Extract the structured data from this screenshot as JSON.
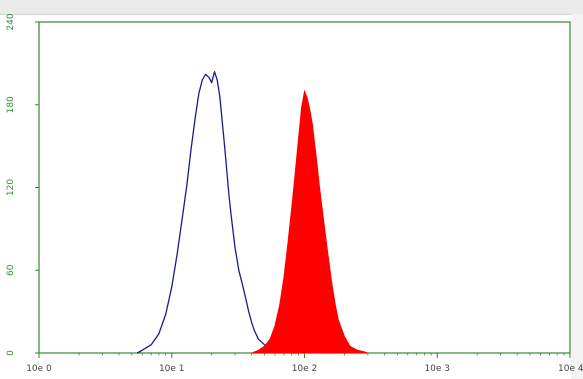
{
  "chart_data": {
    "type": "area",
    "title": "",
    "xlabel": "",
    "ylabel": "",
    "x_scale": "log",
    "xlim": [
      1,
      10000
    ],
    "ylim": [
      0,
      240
    ],
    "x_tick_labels": [
      "10e 0",
      "10e 1",
      "10e 2",
      "10e 3",
      "10e 4"
    ],
    "y_tick_labels": [
      "0",
      "60",
      "120",
      "180",
      "240"
    ],
    "grid": false,
    "series": [
      {
        "style": "outline",
        "color": "#1a1a8c",
        "x": [
          5.5,
          6,
          7,
          8,
          9,
          10,
          11,
          12,
          13,
          14,
          15,
          16,
          17,
          18,
          19,
          20,
          21,
          22,
          23,
          24,
          25,
          26,
          27,
          28,
          29,
          30,
          31,
          32,
          34,
          36,
          38,
          40,
          42,
          45,
          50,
          55,
          60,
          70,
          80,
          90
        ],
        "y": [
          0,
          2,
          6,
          14,
          28,
          48,
          72,
          98,
          122,
          148,
          170,
          188,
          198,
          202,
          200,
          196,
          204,
          198,
          186,
          168,
          150,
          132,
          114,
          100,
          88,
          76,
          68,
          60,
          50,
          40,
          30,
          22,
          16,
          10,
          6,
          4,
          2,
          1,
          0,
          0
        ]
      },
      {
        "style": "filled",
        "color": "#ff0000",
        "x": [
          40,
          45,
          50,
          55,
          60,
          65,
          70,
          75,
          80,
          85,
          90,
          95,
          100,
          105,
          110,
          115,
          120,
          125,
          130,
          140,
          150,
          160,
          170,
          180,
          200,
          220,
          250,
          280,
          300
        ],
        "y": [
          0,
          2,
          5,
          10,
          20,
          35,
          55,
          80,
          105,
          130,
          155,
          178,
          190,
          185,
          176,
          165,
          150,
          135,
          120,
          95,
          72,
          52,
          36,
          24,
          12,
          5,
          2,
          1,
          0
        ]
      }
    ]
  }
}
